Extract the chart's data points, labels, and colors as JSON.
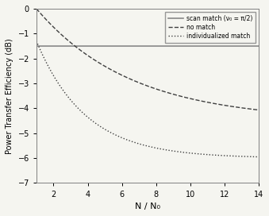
{
  "title": "",
  "xlabel": "N / N₀",
  "ylabel": "Power Transfer Efficiency (dB)",
  "xlim": [
    1,
    14
  ],
  "ylim": [
    -7,
    0
  ],
  "yticks": [
    0,
    -1,
    -2,
    -3,
    -4,
    -5,
    -6,
    -7
  ],
  "xticks": [
    2,
    4,
    6,
    8,
    10,
    12,
    14
  ],
  "scan_match_value": -1.5,
  "legend_labels": [
    "scan match (ν₀ = π/2)",
    "no match",
    "individualized match"
  ],
  "scan_color": "#888888",
  "nomatch_color": "#404040",
  "indiv_color": "#404040",
  "bg_color": "#f5f5f0",
  "fig_color": "#f5f5f0"
}
